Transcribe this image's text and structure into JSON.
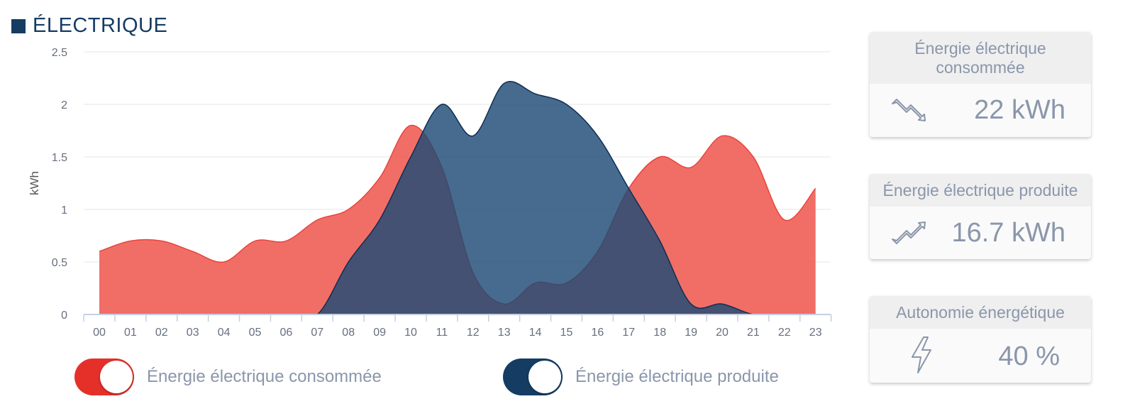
{
  "header": {
    "title": "ÉLECTRIQUE"
  },
  "legend": {
    "consumed_label": "Énergie électrique consommée",
    "produced_label": "Énergie électrique produite"
  },
  "cards": {
    "consumed": {
      "title": "Énergie électrique consommée",
      "value": "22 kWh",
      "icon": "trend-down-icon"
    },
    "produced": {
      "title": "Énergie électrique produite",
      "value": "16.7 kWh",
      "icon": "trend-up-icon"
    },
    "autonomy": {
      "title": "Autonomie énergétique",
      "value": "40 %",
      "icon": "lightning-icon"
    }
  },
  "colors": {
    "consumed": "#f0625a",
    "produced": "#1d4a75",
    "overlap": "#474a66",
    "title": "#153c63",
    "toggle_consumed": "#e5302a",
    "toggle_produced": "#153c63"
  },
  "chart_data": {
    "type": "area",
    "title": "",
    "xlabel": "",
    "ylabel": "kWh",
    "ylim": [
      0,
      2.5
    ],
    "yticks": [
      "0",
      "0.5",
      "1",
      "1.5",
      "2",
      "2.5"
    ],
    "grid": true,
    "categories": [
      "00",
      "01",
      "02",
      "03",
      "04",
      "05",
      "06",
      "07",
      "08",
      "09",
      "10",
      "11",
      "12",
      "13",
      "14",
      "15",
      "16",
      "17",
      "18",
      "19",
      "20",
      "21",
      "22",
      "23"
    ],
    "series": [
      {
        "name": "Énergie électrique consommée",
        "key": "consumed",
        "values": [
          0.6,
          0.7,
          0.7,
          0.6,
          0.5,
          0.7,
          0.7,
          0.9,
          1.0,
          1.3,
          1.8,
          1.4,
          0.4,
          0.1,
          0.3,
          0.3,
          0.6,
          1.2,
          1.5,
          1.4,
          1.7,
          1.5,
          0.9,
          1.2
        ]
      },
      {
        "name": "Énergie électrique produite",
        "key": "produced",
        "values": [
          0,
          0,
          0,
          0,
          0,
          0,
          0,
          0,
          0.5,
          0.9,
          1.5,
          2.0,
          1.7,
          2.2,
          2.1,
          2.0,
          1.7,
          1.2,
          0.7,
          0.1,
          0.1,
          0,
          0,
          0
        ]
      }
    ]
  }
}
